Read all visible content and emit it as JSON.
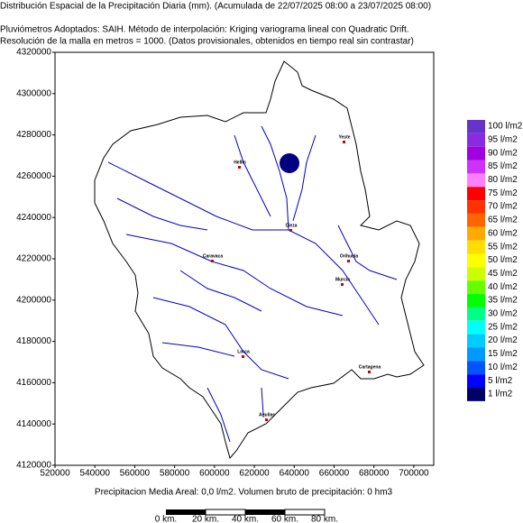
{
  "header": {
    "title": "Distribución Espacial de la Precipitación Diaria (mm). (Acumulada de 22/07/2025 08:00 a 23/07/2025 08:00)",
    "line2": "Pluviómetros Adoptados: SAIH.  Método de interpolación: Kriging variograma lineal con Quadratic Drift.",
    "line3": "Resolución de la malla en metros = 1000. (Datos provisionales, obtenidos en tiempo real sin contrastar)"
  },
  "map": {
    "xlim": [
      520000,
      710000
    ],
    "ylim": [
      4120000,
      4320000
    ],
    "xticks": [
      520000,
      540000,
      560000,
      580000,
      600000,
      620000,
      640000,
      660000,
      680000,
      700000
    ],
    "yticks": [
      4120000,
      4140000,
      4160000,
      4180000,
      4200000,
      4220000,
      4240000,
      4260000,
      4280000,
      4300000,
      4320000
    ],
    "cities": [
      "Yeste",
      "Hellín",
      "Cieza",
      "Caravaca",
      "Orihuela",
      "Murcia",
      "Lorca",
      "Cartagena",
      "Aguilas"
    ]
  },
  "legend": [
    {
      "label": "100 l/m2",
      "color": "#6633cc"
    },
    {
      "label": "95 l/m2",
      "color": "#8a2be2"
    },
    {
      "label": "90 l/m2",
      "color": "#a000e0"
    },
    {
      "label": "85 l/m2",
      "color": "#cc33ff"
    },
    {
      "label": "80 l/m2",
      "color": "#ff80ff"
    },
    {
      "label": "75 l/m2",
      "color": "#ff0000"
    },
    {
      "label": "70 l/m2",
      "color": "#ff3300"
    },
    {
      "label": "65 l/m2",
      "color": "#ff6600"
    },
    {
      "label": "60 l/m2",
      "color": "#ffaa00"
    },
    {
      "label": "55 l/m2",
      "color": "#ffdd00"
    },
    {
      "label": "50 l/m2",
      "color": "#ffff00"
    },
    {
      "label": "45 l/m2",
      "color": "#ccff00"
    },
    {
      "label": "40 l/m2",
      "color": "#66ff00"
    },
    {
      "label": "35 l/m2",
      "color": "#00ff00"
    },
    {
      "label": "30 l/m2",
      "color": "#00ff88"
    },
    {
      "label": "25 l/m2",
      "color": "#00ffff"
    },
    {
      "label": "20 l/m2",
      "color": "#00ccff"
    },
    {
      "label": "15 l/m2",
      "color": "#0099ff"
    },
    {
      "label": "10 l/m2",
      "color": "#0055ff"
    },
    {
      "label": "5 l/m2",
      "color": "#0000ff"
    },
    {
      "label": "1 l/m2",
      "color": "#000066"
    }
  ],
  "footer": "Precipitacion Media Areal: 0,0 l/m2. Volumen bruto de precipitación: 0 hm3",
  "scale": [
    "0 km.",
    "20 km.",
    "40 km.",
    "60 km.",
    "80 km."
  ]
}
